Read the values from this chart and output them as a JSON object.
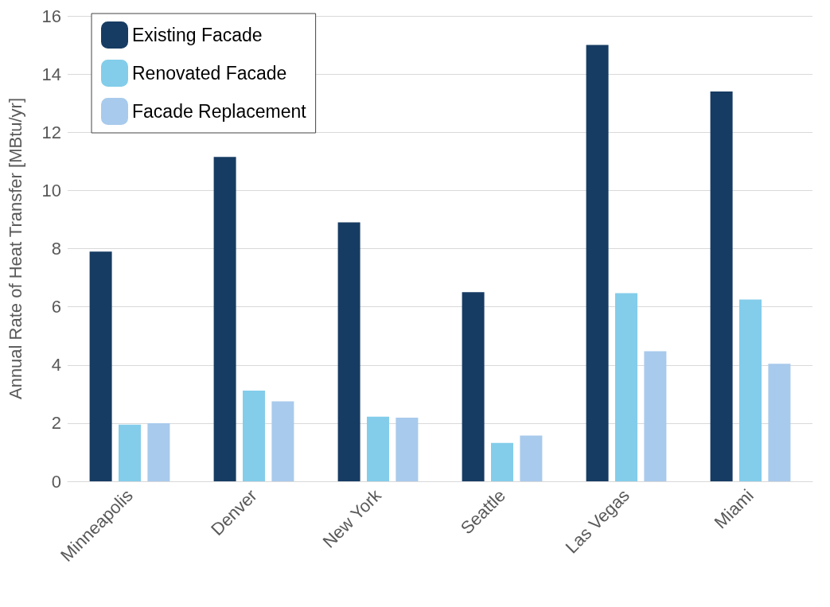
{
  "chart_data": {
    "type": "bar",
    "ylabel": "Annual Rate of Heat Transfer [MBtu/yr]",
    "categories": [
      "Minneapolis",
      "Denver",
      "New York",
      "Seattle",
      "Las Vegas",
      "Miami"
    ],
    "series": [
      {
        "name": "Existing Facade",
        "color": "#173c63",
        "values": [
          7.9,
          11.15,
          8.9,
          6.5,
          15.0,
          13.4
        ]
      },
      {
        "name": "Renovated Facade",
        "color": "#83cdea",
        "values": [
          1.95,
          3.12,
          2.22,
          1.32,
          6.47,
          6.25
        ]
      },
      {
        "name": "Facade Replacement",
        "color": "#a8caec",
        "values": [
          2.0,
          2.75,
          2.19,
          1.57,
          4.47,
          4.04
        ]
      }
    ],
    "ylim": [
      0,
      16
    ],
    "yticks": [
      0,
      2,
      4,
      6,
      8,
      10,
      12,
      14,
      16
    ],
    "grid": "y",
    "legend": "top left"
  }
}
